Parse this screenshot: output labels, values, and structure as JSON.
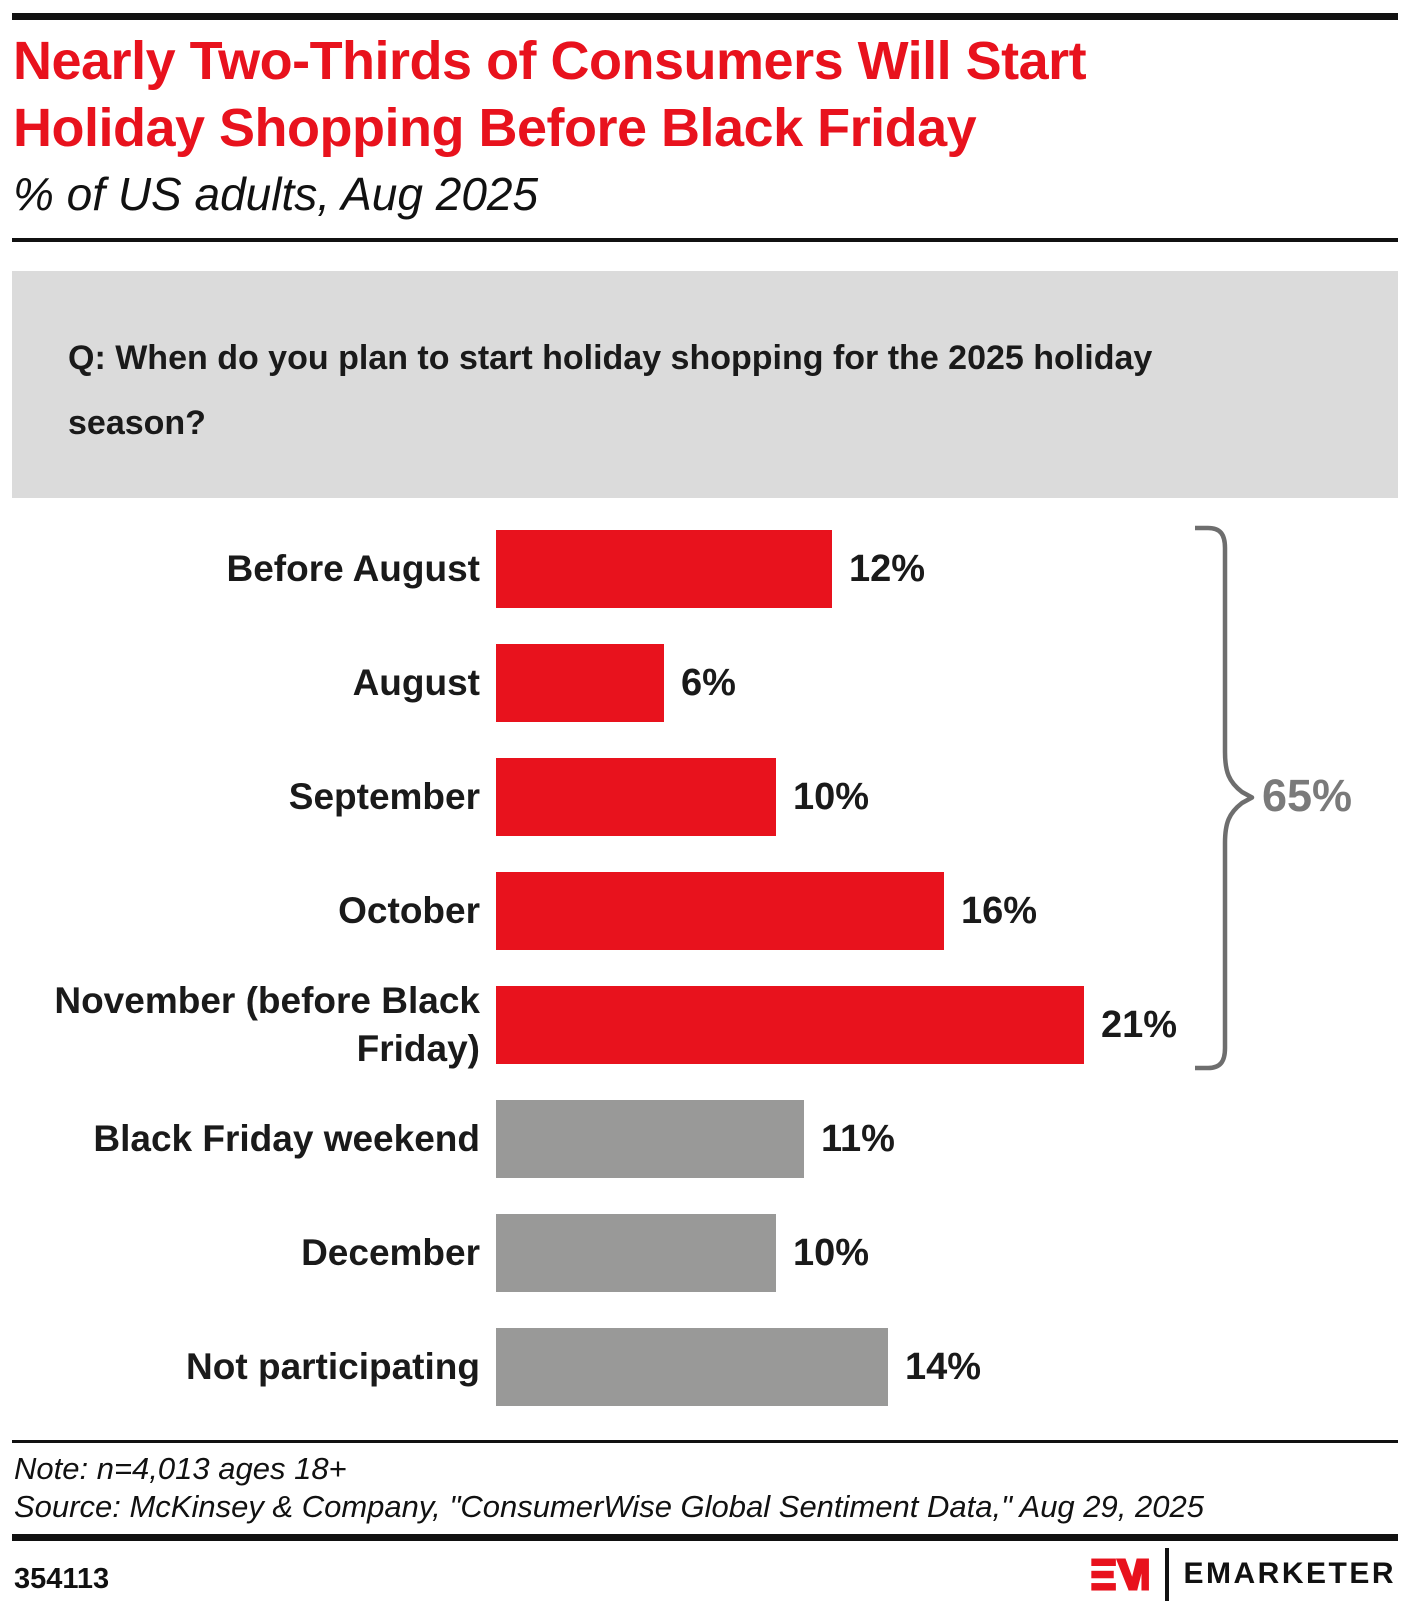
{
  "header": {
    "title_lines": [
      "Nearly Two-Thirds of Consumers Will Start",
      "Holiday Shopping Before Black Friday"
    ],
    "subtitle": "% of US adults, Aug 2025"
  },
  "question": {
    "text": "Q: When do you plan to start holiday shopping for the 2025 holiday season?"
  },
  "chart_data": {
    "type": "bar",
    "orientation": "horizontal",
    "unit": "%",
    "categories": [
      "Before August",
      "August",
      "September",
      "October",
      "November (before Black Friday)",
      "Black Friday weekend",
      "December",
      "Not participating"
    ],
    "values": [
      12,
      6,
      10,
      16,
      21,
      11,
      10,
      14
    ],
    "display_values": [
      "12%",
      "6%",
      "10%",
      "16%",
      "21%",
      "11%",
      "10%",
      "14%"
    ],
    "groups": [
      "red",
      "red",
      "red",
      "red",
      "red",
      "gray",
      "gray",
      "gray"
    ],
    "annotation": {
      "label": "65%",
      "covers_categories": [
        "Before August",
        "August",
        "September",
        "October",
        "November (before Black Friday)"
      ]
    },
    "xlim": [
      0,
      25
    ],
    "grid": false,
    "legend": false
  },
  "footer": {
    "note": "Note: n=4,013 ages 18+",
    "source": "Source: McKinsey & Company, \"ConsumerWise Global Sentiment Data,\" Aug 29, 2025",
    "chart_id": "354113",
    "brand_name": "EMARKETER"
  },
  "colors": {
    "accent_red": "#e8121d",
    "bar_red": "#e8121d",
    "bar_gray": "#999998",
    "question_box_bg": "#dbdbdb",
    "brace_gray": "#6e6e6e",
    "annotation_gray": "#7a7a7a",
    "text_black": "#111111"
  }
}
